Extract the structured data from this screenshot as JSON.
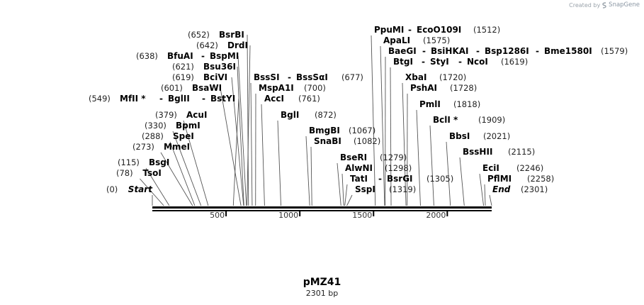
{
  "credit": {
    "prefix": "Created by",
    "brand": "SnapGene"
  },
  "plasmid": {
    "name": "pMZ41",
    "size_label": "2301 bp",
    "length": 2301
  },
  "ruler": {
    "ticks": [
      500,
      1000,
      1500,
      2000
    ]
  },
  "sites": [
    {
      "pos": 0,
      "pos_label": "(0)",
      "names": [
        "Start"
      ],
      "italic": true,
      "star": false
    },
    {
      "pos": 78,
      "pos_label": "(78)",
      "names": [
        "TsoI"
      ]
    },
    {
      "pos": 115,
      "pos_label": "(115)",
      "names": [
        "BsgI"
      ]
    },
    {
      "pos": 273,
      "pos_label": "(273)",
      "names": [
        "MmeI"
      ]
    },
    {
      "pos": 288,
      "pos_label": "(288)",
      "names": [
        "SpeI"
      ]
    },
    {
      "pos": 330,
      "pos_label": "(330)",
      "names": [
        "BpmI"
      ]
    },
    {
      "pos": 379,
      "pos_label": "(379)",
      "names": [
        "AcuI"
      ]
    },
    {
      "pos": 549,
      "pos_label": "(549)",
      "names": [
        "MfII *",
        "BglII",
        "BstYI"
      ]
    },
    {
      "pos": 601,
      "pos_label": "(601)",
      "names": [
        "BsaWI"
      ]
    },
    {
      "pos": 619,
      "pos_label": "(619)",
      "names": [
        "BciVI"
      ]
    },
    {
      "pos": 621,
      "pos_label": "(621)",
      "names": [
        "Bsu36I"
      ]
    },
    {
      "pos": 638,
      "pos_label": "(638)",
      "names": [
        "BfuAI",
        "BspMI"
      ]
    },
    {
      "pos": 642,
      "pos_label": "(642)",
      "names": [
        "DrdI"
      ]
    },
    {
      "pos": 652,
      "pos_label": "(652)",
      "names": [
        "BsrBI"
      ]
    },
    {
      "pos": 677,
      "pos_label": "(677)",
      "names": [
        "BssSI",
        "BssSαI"
      ]
    },
    {
      "pos": 700,
      "pos_label": "(700)",
      "names": [
        "MspA1I"
      ]
    },
    {
      "pos": 761,
      "pos_label": "(761)",
      "names": [
        "AccI"
      ]
    },
    {
      "pos": 872,
      "pos_label": "(872)",
      "names": [
        "BglI"
      ]
    },
    {
      "pos": 1067,
      "pos_label": "(1067)",
      "names": [
        "BmgBI"
      ]
    },
    {
      "pos": 1082,
      "pos_label": "(1082)",
      "names": [
        "SnaBI"
      ]
    },
    {
      "pos": 1279,
      "pos_label": "(1279)",
      "names": [
        "BseRI"
      ]
    },
    {
      "pos": 1298,
      "pos_label": "(1298)",
      "names": [
        "AlwNI"
      ]
    },
    {
      "pos": 1305,
      "pos_label": "(1305)",
      "names": [
        "TatI",
        "BsrGI"
      ]
    },
    {
      "pos": 1319,
      "pos_label": "(1319)",
      "names": [
        "SspI"
      ]
    },
    {
      "pos": 1512,
      "pos_label": "(1512)",
      "names": [
        "PpuMI",
        "EcoO109I"
      ]
    },
    {
      "pos": 1575,
      "pos_label": "(1575)",
      "names": [
        "ApaLI"
      ]
    },
    {
      "pos": 1579,
      "pos_label": "(1579)",
      "names": [
        "BaeGI",
        "BsiHKAI",
        "Bsp1286I",
        "Bme1580I"
      ]
    },
    {
      "pos": 1619,
      "pos_label": "(1619)",
      "names": [
        "BtgI",
        "StyI",
        "NcoI"
      ]
    },
    {
      "pos": 1720,
      "pos_label": "(1720)",
      "names": [
        "XbaI"
      ]
    },
    {
      "pos": 1728,
      "pos_label": "(1728)",
      "names": [
        "PshAI"
      ]
    },
    {
      "pos": 1818,
      "pos_label": "(1818)",
      "names": [
        "PmlI"
      ]
    },
    {
      "pos": 1909,
      "pos_label": "(1909)",
      "names": [
        "BclI *"
      ]
    },
    {
      "pos": 2021,
      "pos_label": "(2021)",
      "names": [
        "BbsI"
      ]
    },
    {
      "pos": 2115,
      "pos_label": "(2115)",
      "names": [
        "BssHII"
      ]
    },
    {
      "pos": 2246,
      "pos_label": "(2246)",
      "names": [
        "EciI"
      ]
    },
    {
      "pos": 2258,
      "pos_label": "(2258)",
      "names": [
        "PflMI"
      ]
    },
    {
      "pos": 2301,
      "pos_label": "(2301)",
      "names": [
        "End"
      ],
      "italic": true
    }
  ]
}
